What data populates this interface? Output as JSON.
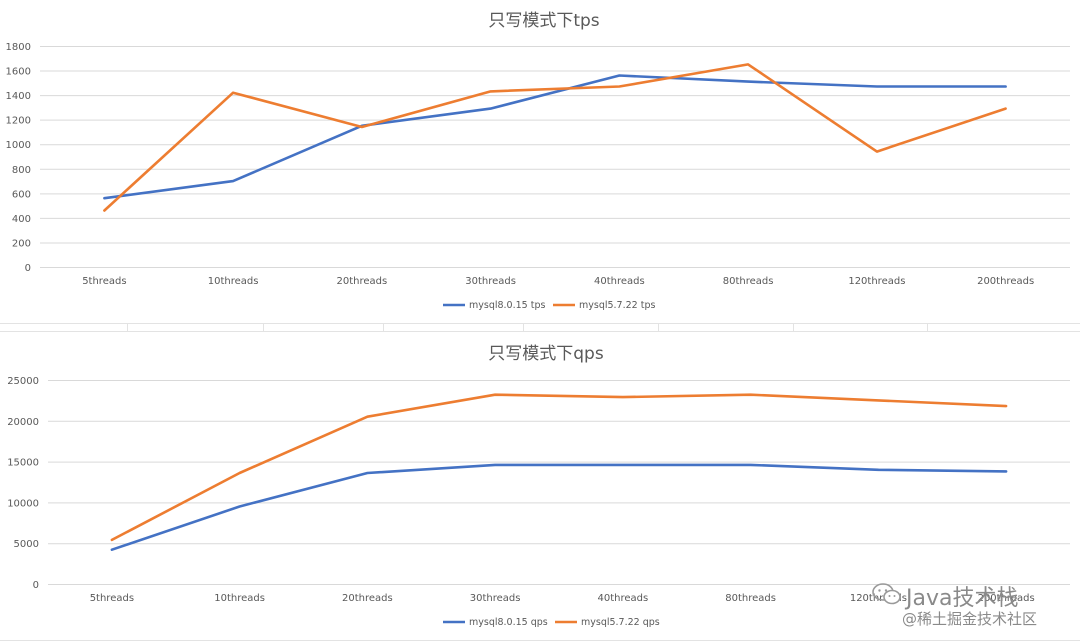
{
  "colors": {
    "series1": "#4472c4",
    "series2": "#ed7d31",
    "grid": "#d9d9d9",
    "text": "#595959",
    "sheet_grid": "#e3e3e3"
  },
  "chart_data": [
    {
      "type": "line",
      "title": "只写模式下tps",
      "categories": [
        "5threads",
        "10threads",
        "20threads",
        "30threads",
        "40threads",
        "80threads",
        "120threads",
        "200threads"
      ],
      "series": [
        {
          "name": "mysql8.0.15 tps",
          "values": [
            560,
            700,
            1150,
            1290,
            1560,
            1510,
            1470,
            1470
          ]
        },
        {
          "name": "mysql5.7.22 tps",
          "values": [
            460,
            1420,
            1140,
            1430,
            1470,
            1650,
            940,
            1290
          ]
        }
      ],
      "ylim": [
        0,
        1800
      ],
      "yticks": [
        0,
        200,
        400,
        600,
        800,
        1000,
        1200,
        1400,
        1600,
        1800
      ],
      "grid": true,
      "legend": "bottom"
    },
    {
      "type": "line",
      "title": "只写模式下qps",
      "categories": [
        "5threads",
        "10threads",
        "20threads",
        "30threads",
        "40threads",
        "80threads",
        "120threads",
        "200threads"
      ],
      "series": [
        {
          "name": "mysql8.0.15 qps",
          "values": [
            4200,
            9500,
            13600,
            14600,
            14600,
            14600,
            14000,
            13800
          ]
        },
        {
          "name": "mysql5.7.22 qps",
          "values": [
            5400,
            13600,
            20500,
            23200,
            22900,
            23200,
            22500,
            21800
          ]
        }
      ],
      "ylim": [
        0,
        25000
      ],
      "yticks": [
        0,
        5000,
        10000,
        15000,
        20000,
        25000
      ],
      "grid": true,
      "legend": "bottom"
    }
  ],
  "watermark": {
    "title": "Java技术栈",
    "subtitle": "@稀土掘金技术社区",
    "icon": "wechat-icon"
  }
}
